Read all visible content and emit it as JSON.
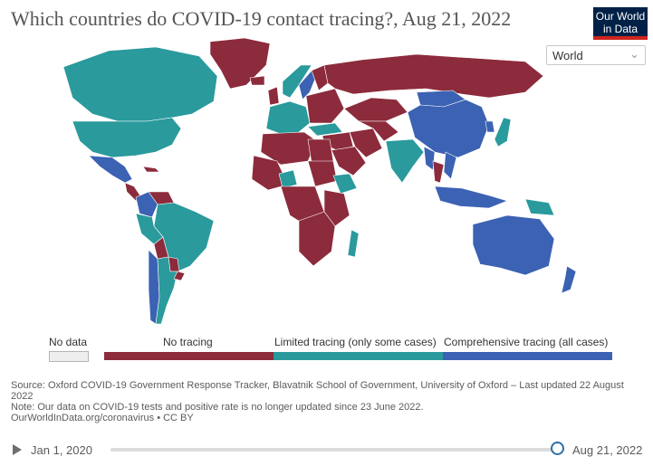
{
  "title": "Which countries do COVID-19 contact tracing?, Aug 21, 2022",
  "logo": {
    "line1": "Our World",
    "line2": "in Data"
  },
  "region_select": {
    "value": "World"
  },
  "colors": {
    "no_tracing": "#8c2b3b",
    "limited": "#2a9a9c",
    "comprehensive": "#3b62b3",
    "no_data": "#eeeeee",
    "ocean": "#ffffff"
  },
  "legend": {
    "no_data": "No data",
    "no_tracing": "No tracing",
    "limited": "Limited tracing (only some cases)",
    "comprehensive": "Comprehensive tracing (all cases)"
  },
  "footer": {
    "source": "Source: Oxford COVID-19 Government Response Tracker, Blavatnik School of Government, University of Oxford – Last updated 22 August 2022",
    "note": "Note: Our data on COVID-19 tests and positive rate is no longer updated since 23 June 2022.",
    "link": "OurWorldInData.org/coronavirus • CC BY"
  },
  "timeline": {
    "start": "Jan 1, 2020",
    "end": "Aug 21, 2022",
    "position": 1.0
  },
  "map_regions": [
    {
      "name": "Greenland",
      "category": "no_tracing"
    },
    {
      "name": "Canada",
      "category": "limited"
    },
    {
      "name": "United States",
      "category": "limited"
    },
    {
      "name": "Mexico",
      "category": "comprehensive"
    },
    {
      "name": "Central America",
      "category": "no_tracing"
    },
    {
      "name": "Cuba",
      "category": "no_tracing"
    },
    {
      "name": "Venezuela",
      "category": "no_tracing"
    },
    {
      "name": "Colombia",
      "category": "comprehensive"
    },
    {
      "name": "Brazil",
      "category": "limited"
    },
    {
      "name": "Peru",
      "category": "limited"
    },
    {
      "name": "Bolivia",
      "category": "no_tracing"
    },
    {
      "name": "Paraguay",
      "category": "no_tracing"
    },
    {
      "name": "Chile",
      "category": "comprehensive"
    },
    {
      "name": "Argentina",
      "category": "limited"
    },
    {
      "name": "Uruguay",
      "category": "no_tracing"
    },
    {
      "name": "Iceland",
      "category": "no_tracing"
    },
    {
      "name": "United Kingdom",
      "category": "no_tracing"
    },
    {
      "name": "Norway",
      "category": "limited"
    },
    {
      "name": "Sweden",
      "category": "comprehensive"
    },
    {
      "name": "Finland",
      "category": "no_tracing"
    },
    {
      "name": "Western Europe",
      "category": "limited"
    },
    {
      "name": "Eastern Europe",
      "category": "no_tracing"
    },
    {
      "name": "Russia",
      "category": "no_tracing"
    },
    {
      "name": "Kazakhstan",
      "category": "no_tracing"
    },
    {
      "name": "Mongolia",
      "category": "comprehensive"
    },
    {
      "name": "China",
      "category": "comprehensive"
    },
    {
      "name": "Japan",
      "category": "limited"
    },
    {
      "name": "Korea",
      "category": "comprehensive"
    },
    {
      "name": "Turkey",
      "category": "limited"
    },
    {
      "name": "Middle East",
      "category": "no_tracing"
    },
    {
      "name": "Saudi Arabia",
      "category": "no_tracing"
    },
    {
      "name": "Iran",
      "category": "no_tracing"
    },
    {
      "name": "Central Asia",
      "category": "no_tracing"
    },
    {
      "name": "India",
      "category": "limited"
    },
    {
      "name": "Myanmar",
      "category": "comprehensive"
    },
    {
      "name": "Thailand",
      "category": "no_tracing"
    },
    {
      "name": "Vietnam",
      "category": "comprehensive"
    },
    {
      "name": "Indonesia",
      "category": "comprehensive"
    },
    {
      "name": "Papua New Guinea",
      "category": "limited"
    },
    {
      "name": "Australia",
      "category": "comprehensive"
    },
    {
      "name": "New Zealand",
      "category": "comprehensive"
    },
    {
      "name": "North Africa",
      "category": "no_tracing"
    },
    {
      "name": "Egypt",
      "category": "no_tracing"
    },
    {
      "name": "West Africa",
      "category": "no_tracing"
    },
    {
      "name": "Nigeria",
      "category": "limited"
    },
    {
      "name": "Sudan",
      "category": "no_tracing"
    },
    {
      "name": "Ethiopia",
      "category": "limited"
    },
    {
      "name": "Central Africa",
      "category": "no_tracing"
    },
    {
      "name": "East Africa",
      "category": "no_tracing"
    },
    {
      "name": "Southern Africa",
      "category": "no_tracing"
    },
    {
      "name": "Madagascar",
      "category": "limited"
    }
  ]
}
